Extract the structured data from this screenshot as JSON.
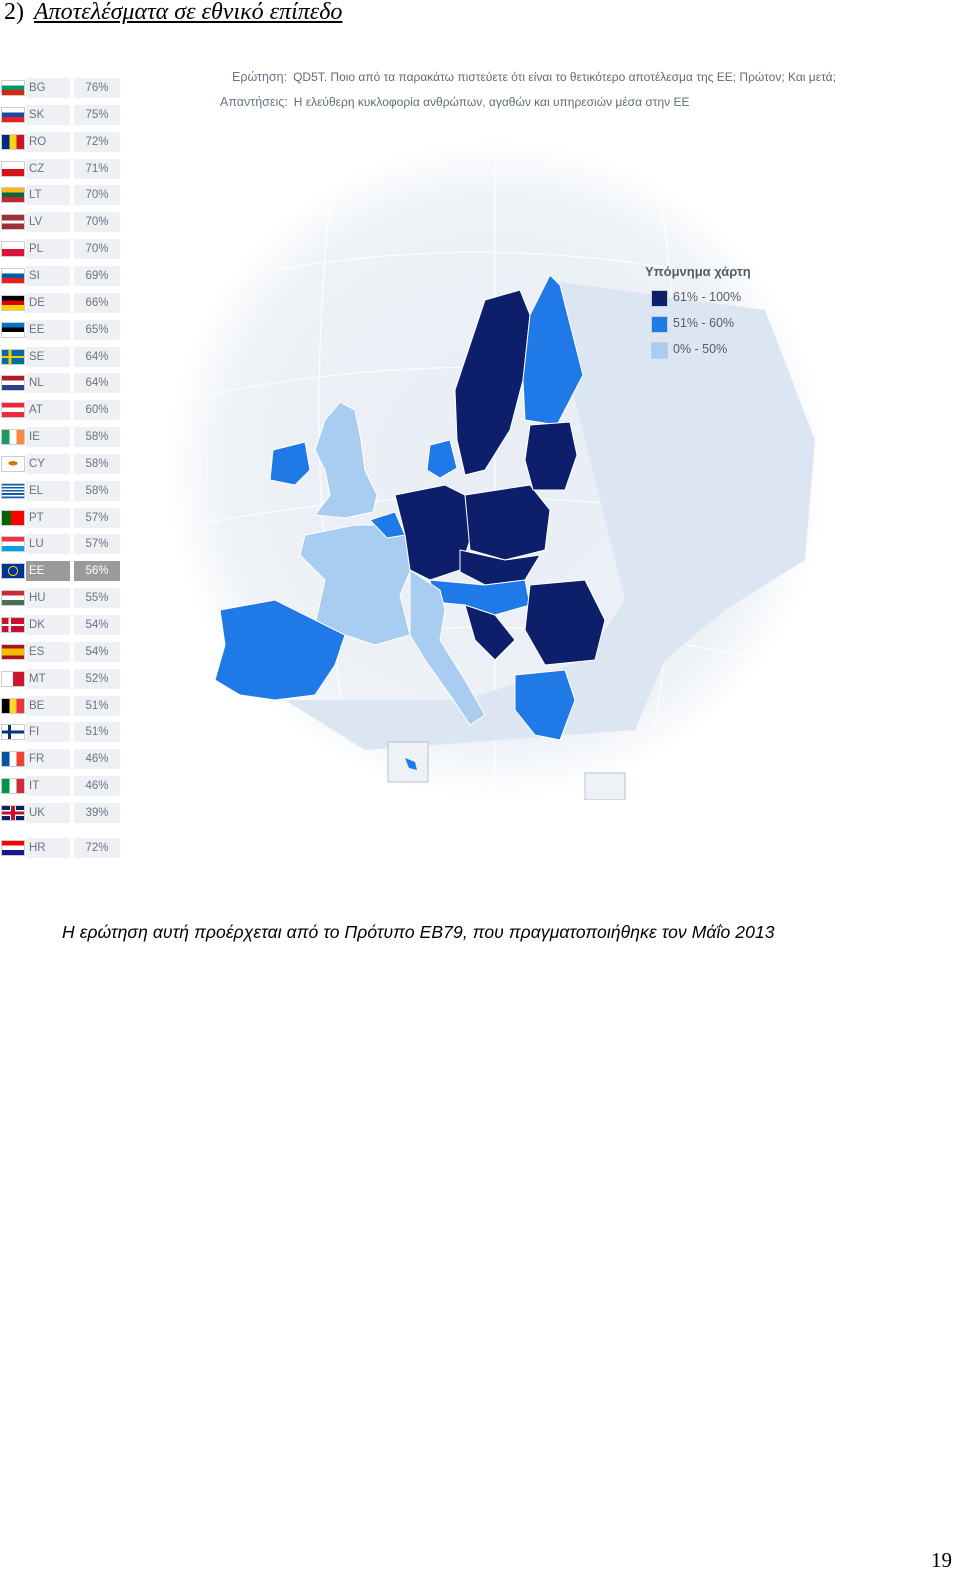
{
  "heading": {
    "number": "2)",
    "title": "Αποτελέσματα σε εθνικό επίπεδο"
  },
  "question": {
    "label": "Ερώτηση:",
    "text": "QD5T. Ποιο από τα παρακάτω πιστεύετε ότι είναι το θετικότερο αποτέλεσμα της ΕΕ; Πρώτον; Και μετά;"
  },
  "answers": {
    "label": "Απαντήσεις:",
    "text": "Η ελεύθερη κυκλοφορία ανθρώπων, αγαθών και υπηρεσιών μέσα στην ΕΕ"
  },
  "legend": {
    "title": "Υπόμνημα χάρτη",
    "items": [
      {
        "label": "61% - 100%",
        "color": "#0d1e6b"
      },
      {
        "label": "51% - 60%",
        "color": "#1f7ae8"
      },
      {
        "label": "0% - 50%",
        "color": "#a9cdf0"
      }
    ]
  },
  "countries": [
    {
      "code": "BG",
      "value": "76%",
      "flag": "bg"
    },
    {
      "code": "SK",
      "value": "75%",
      "flag": "sk"
    },
    {
      "code": "RO",
      "value": "72%",
      "flag": "ro"
    },
    {
      "code": "CZ",
      "value": "71%",
      "flag": "cz"
    },
    {
      "code": "LT",
      "value": "70%",
      "flag": "lt"
    },
    {
      "code": "LV",
      "value": "70%",
      "flag": "lv"
    },
    {
      "code": "PL",
      "value": "70%",
      "flag": "pl"
    },
    {
      "code": "SI",
      "value": "69%",
      "flag": "si"
    },
    {
      "code": "DE",
      "value": "66%",
      "flag": "de"
    },
    {
      "code": "EE",
      "value": "65%",
      "flag": "ee"
    },
    {
      "code": "SE",
      "value": "64%",
      "flag": "se"
    },
    {
      "code": "NL",
      "value": "64%",
      "flag": "nl"
    },
    {
      "code": "AT",
      "value": "60%",
      "flag": "at"
    },
    {
      "code": "IE",
      "value": "58%",
      "flag": "ie"
    },
    {
      "code": "CY",
      "value": "58%",
      "flag": "cy"
    },
    {
      "code": "EL",
      "value": "58%",
      "flag": "el"
    },
    {
      "code": "PT",
      "value": "57%",
      "flag": "pt"
    },
    {
      "code": "LU",
      "value": "57%",
      "flag": "lu"
    },
    {
      "code": "EE",
      "value": "56%",
      "flag": "eu",
      "highlight": true
    },
    {
      "code": "HU",
      "value": "55%",
      "flag": "hu"
    },
    {
      "code": "DK",
      "value": "54%",
      "flag": "dk"
    },
    {
      "code": "ES",
      "value": "54%",
      "flag": "es"
    },
    {
      "code": "MT",
      "value": "52%",
      "flag": "mt"
    },
    {
      "code": "BE",
      "value": "51%",
      "flag": "be"
    },
    {
      "code": "FI",
      "value": "51%",
      "flag": "fi"
    },
    {
      "code": "FR",
      "value": "46%",
      "flag": "fr"
    },
    {
      "code": "IT",
      "value": "46%",
      "flag": "it"
    },
    {
      "code": "UK",
      "value": "39%",
      "flag": "uk"
    },
    {
      "code": "HR",
      "value": "72%",
      "flag": "hr"
    }
  ],
  "caption": "Η ερώτηση αυτή προέρχεται από το Πρότυπο ΕΒ79, που πραγματοποιήθηκε τον Μάΐο 2013",
  "page_number": "19"
}
